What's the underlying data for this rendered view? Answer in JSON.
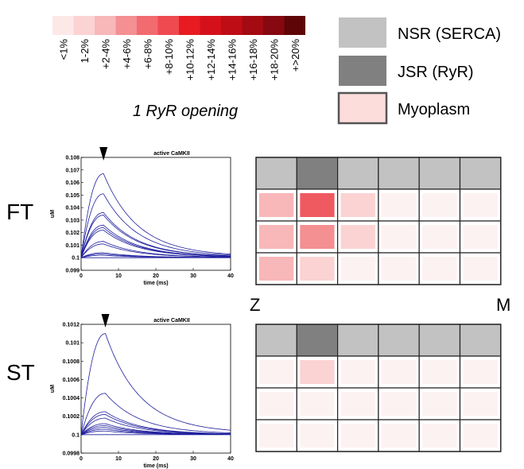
{
  "scale": {
    "caption": "1 RyR opening",
    "bins": [
      {
        "label": "<1%",
        "color": "#fde8e8"
      },
      {
        "label": "1-2%",
        "color": "#fbd3d3"
      },
      {
        "label": "+2-4%",
        "color": "#f8b7b9"
      },
      {
        "label": "+4-6%",
        "color": "#f48f92"
      },
      {
        "label": "+6-8%",
        "color": "#f16b6f"
      },
      {
        "label": "+8-10%",
        "color": "#ee4a50"
      },
      {
        "label": "+10-12%",
        "color": "#e81b22"
      },
      {
        "label": "+12-14%",
        "color": "#d4111a"
      },
      {
        "label": "+14-16%",
        "color": "#be0d15"
      },
      {
        "label": "+16-18%",
        "color": "#a30a11"
      },
      {
        "label": "+18-20%",
        "color": "#860810"
      },
      {
        "label": "+>20%",
        "color": "#5e0508"
      }
    ]
  },
  "legend": [
    {
      "label": "NSR (SERCA)",
      "color": "#c2c2c2"
    },
    {
      "label": "JSR (RyR)",
      "color": "#808080"
    },
    {
      "label": "Myoplasm",
      "color": "#fddcdc"
    }
  ],
  "colors": {
    "nsr": "#c2c2c2",
    "jsr": "#808080",
    "myo_faint": "#fdf2f2",
    "trace": "#1f1f9e"
  },
  "axis_labels": {
    "z": "Z",
    "m": "M"
  },
  "rows": [
    {
      "label": "FT",
      "grid": [
        [
          "#f8b7b9",
          "#ef5a60",
          "#fbd3d3",
          "#fdf2f2",
          "#fdf2f2",
          "#fdf2f2"
        ],
        [
          "#f8b7b9",
          "#f48f92",
          "#fbd3d3",
          "#fdf2f2",
          "#fdf2f2",
          "#fdf2f2"
        ],
        [
          "#f8b7b9",
          "#fbd3d3",
          "#fdf2f2",
          "#fdf2f2",
          "#fdf2f2",
          "#fdf2f2"
        ]
      ]
    },
    {
      "label": "ST",
      "grid": [
        [
          "#fdf2f2",
          "#fbd3d3",
          "#fdf2f2",
          "#fdf2f2",
          "#fdf2f2",
          "#fdf2f2"
        ],
        [
          "#fdf2f2",
          "#fdf2f2",
          "#fdf2f2",
          "#fdf2f2",
          "#fdf2f2",
          "#fdf2f2"
        ],
        [
          "#fdf2f2",
          "#fdf2f2",
          "#fdf2f2",
          "#fdf2f2",
          "#fdf2f2",
          "#fdf2f2"
        ]
      ]
    }
  ],
  "chart_data": [
    {
      "type": "line",
      "title": "active CaMKII",
      "xlabel": "time (ms)",
      "ylabel": "uM",
      "xlim": [
        0,
        40
      ],
      "ylim": [
        0.099,
        0.108
      ],
      "x_ticks": [
        "0",
        "10",
        "20",
        "30",
        "40"
      ],
      "y_ticks": [
        "0.099",
        "0.1",
        "0.101",
        "0.102",
        "0.103",
        "0.104",
        "0.105",
        "0.106",
        "0.107",
        "0.108"
      ],
      "baseline": 0.1,
      "marker_x": 6,
      "peak_time": 6,
      "peaks": [
        0.1067,
        0.1051,
        0.1036,
        0.1034,
        0.1026,
        0.1024,
        0.1022,
        0.1013,
        0.1011,
        0.1004,
        0.1003,
        0.1002
      ]
    },
    {
      "type": "line",
      "title": "active CaMKII",
      "xlabel": "time (ms)",
      "ylabel": "uM",
      "xlim": [
        0,
        40
      ],
      "ylim": [
        0.0998,
        0.1012
      ],
      "x_ticks": [
        "0",
        "10",
        "20",
        "30",
        "40"
      ],
      "y_ticks": [
        "0.0998",
        "0.1",
        "0.1002",
        "0.1004",
        "0.1006",
        "0.1008",
        "0.101",
        "0.1012"
      ],
      "baseline": 0.1,
      "marker_x": 6.5,
      "peak_time": 6.5,
      "peaks": [
        0.1011,
        0.10045,
        0.10025,
        0.10022,
        0.10018,
        0.10012,
        0.1001,
        0.10008,
        0.10006,
        0.10004
      ]
    }
  ]
}
